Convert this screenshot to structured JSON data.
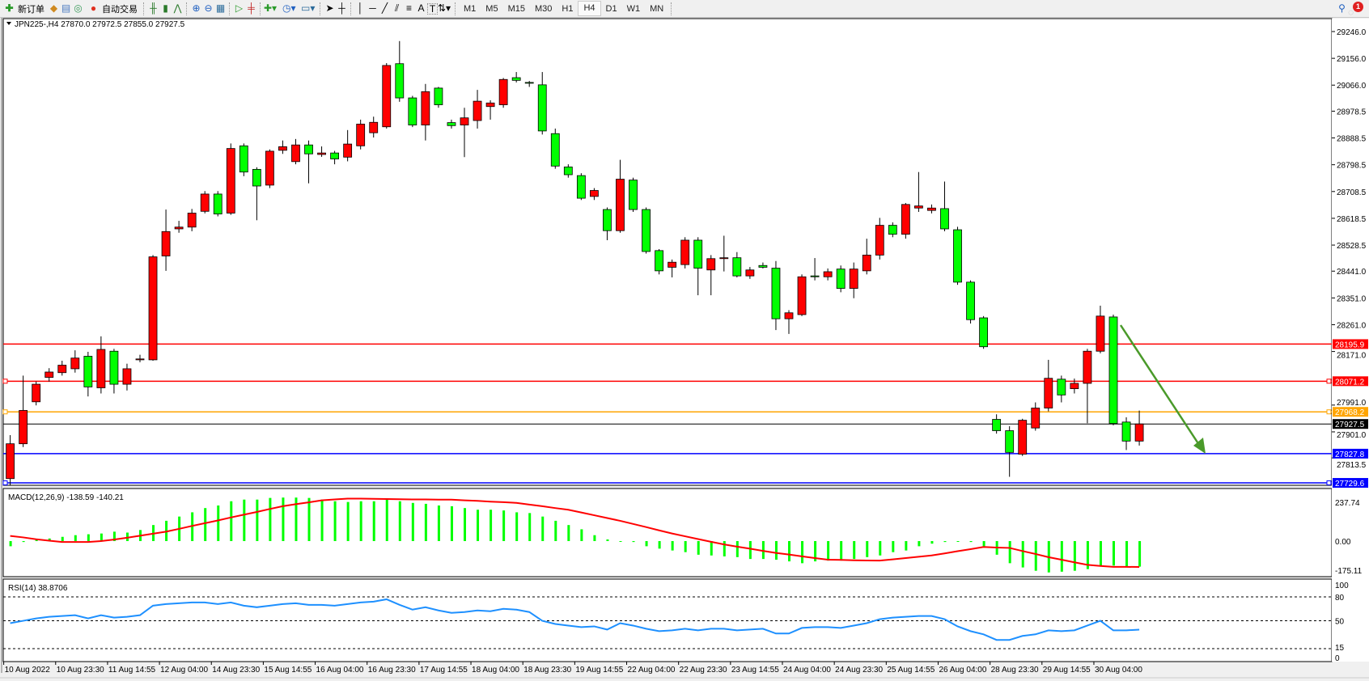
{
  "toolbar": {
    "new_order_label": "新订单",
    "auto_trading_label": "自动交易",
    "icons": [
      "new-order-icon",
      "metaeditor-icon",
      "history-icon",
      "signals-icon",
      "auto-trading-icon",
      "bar-chart-icon",
      "candlestick-icon",
      "line-chart-icon",
      "zoom-in-icon",
      "zoom-out-icon",
      "tile-windows-icon",
      "auto-scroll-icon",
      "chart-shift-icon",
      "indicators-icon",
      "periods-icon",
      "templates-icon",
      "cursor-icon",
      "crosshair-icon",
      "vertical-line-icon",
      "horizontal-line-icon",
      "trendline-icon",
      "equidistant-channel-icon",
      "fibonacci-icon",
      "text-icon",
      "text-label-icon",
      "arrows-icon"
    ],
    "timeframes": [
      "M1",
      "M5",
      "M15",
      "M30",
      "H1",
      "H4",
      "D1",
      "W1",
      "MN"
    ],
    "active_timeframe": "H4",
    "text_tool_label": "A",
    "label_tool_label": "T",
    "notification_count": "1"
  },
  "chart": {
    "header": "JPN225-,H4  27870.0 27972.5 27855.0 27927.5",
    "colors": {
      "bull": "#ff0000",
      "bear": "#00ff00",
      "macd_hist": "#00ff00",
      "signal": "#ff0000",
      "rsi": "#1e90ff",
      "arrow": "#4a9a2a"
    },
    "price_ticks": [
      "29246.0",
      "29156.0",
      "29066.0",
      "28978.5",
      "28888.5",
      "28798.5",
      "28708.5",
      "28618.5",
      "28528.5",
      "28441.0",
      "28351.0",
      "28261.0",
      "28171.0",
      "27991.0",
      "27901.0",
      "27813.5"
    ],
    "levels": [
      {
        "value": "28195.9",
        "color": "#ff0000",
        "text_color": "#ffffff"
      },
      {
        "value": "28071.2",
        "color": "#ff0000",
        "text_color": "#ffffff"
      },
      {
        "value": "27968.2",
        "color": "#ffa500",
        "text_color": "#ffffff"
      },
      {
        "value": "27927.5",
        "color": "#000000",
        "text_color": "#ffffff"
      },
      {
        "value": "27827.8",
        "color": "#0000ff",
        "text_color": "#ffffff"
      },
      {
        "value": "27729.6",
        "color": "#0000ff",
        "text_color": "#ffffff"
      }
    ],
    "time_labels": [
      "10 Aug 2022",
      "10 Aug 23:30",
      "11 Aug 14:55",
      "12 Aug 04:00",
      "14 Aug 23:30",
      "15 Aug 14:55",
      "16 Aug 04:00",
      "16 Aug 23:30",
      "17 Aug 14:55",
      "18 Aug 04:00",
      "18 Aug 23:30",
      "19 Aug 14:55",
      "22 Aug 04:00",
      "22 Aug 23:30",
      "23 Aug 14:55",
      "24 Aug 04:00",
      "24 Aug 23:30",
      "25 Aug 14:55",
      "26 Aug 04:00",
      "28 Aug 23:30",
      "29 Aug 14:55",
      "30 Aug 04:00"
    ],
    "macd": {
      "label": "MACD(12,26,9) -138.59 -140.21",
      "ticks": [
        "237.74",
        "0.00",
        "-175.11"
      ]
    },
    "rsi": {
      "label": "RSI(14) 38.8706",
      "ticks": [
        "100",
        "80",
        "50",
        "15",
        "0"
      ]
    }
  },
  "chart_data": {
    "type": "candlestick",
    "symbol": "JPN225-",
    "timeframe": "H4",
    "ylim": [
      27723.5,
      29246.0
    ],
    "ohlc": [
      [
        27744,
        27890,
        27720,
        27861
      ],
      [
        27861,
        28090,
        27850,
        27973
      ],
      [
        28002,
        28070,
        27990,
        28061
      ],
      [
        28084,
        28115,
        28070,
        28102
      ],
      [
        28100,
        28140,
        28090,
        28125
      ],
      [
        28113,
        28175,
        28100,
        28149
      ],
      [
        28155,
        28170,
        28020,
        28052
      ],
      [
        28049,
        28222,
        28030,
        28178
      ],
      [
        28172,
        28180,
        28030,
        28061
      ],
      [
        28061,
        28130,
        28040,
        28113
      ],
      [
        28143,
        28160,
        28135,
        28146
      ],
      [
        28143,
        28495,
        28140,
        28489
      ],
      [
        28492,
        28648,
        28442,
        28574
      ],
      [
        28583,
        28610,
        28570,
        28589
      ],
      [
        28589,
        28650,
        28575,
        28636
      ],
      [
        28642,
        28710,
        28635,
        28700
      ],
      [
        28700,
        28710,
        28625,
        28633
      ],
      [
        28636,
        28870,
        28630,
        28853
      ],
      [
        28862,
        28870,
        28760,
        28774
      ],
      [
        28783,
        28790,
        28612,
        28727
      ],
      [
        28730,
        28850,
        28720,
        28844
      ],
      [
        28847,
        28880,
        28835,
        28859
      ],
      [
        28809,
        28885,
        28800,
        28865
      ],
      [
        28865,
        28880,
        28736,
        28835
      ],
      [
        28833,
        28860,
        28825,
        28838
      ],
      [
        28838,
        28845,
        28800,
        28818
      ],
      [
        28824,
        28915,
        28810,
        28868
      ],
      [
        28862,
        28950,
        28850,
        28935
      ],
      [
        28906,
        28960,
        28890,
        28941
      ],
      [
        28926,
        29140,
        28920,
        29132
      ],
      [
        29138,
        29214,
        29010,
        29023
      ],
      [
        29023,
        29030,
        28925,
        28932
      ],
      [
        28932,
        29070,
        28880,
        29044
      ],
      [
        29056,
        29060,
        28990,
        29000
      ],
      [
        28940,
        28950,
        28920,
        28930
      ],
      [
        28932,
        28990,
        28824,
        28956
      ],
      [
        28947,
        29050,
        28920,
        29012
      ],
      [
        28994,
        29015,
        28950,
        29006
      ],
      [
        29000,
        29090,
        28990,
        29085
      ],
      [
        29091,
        29110,
        29075,
        29082
      ],
      [
        29075,
        29080,
        29060,
        29073
      ],
      [
        29067,
        29110,
        28900,
        28912
      ],
      [
        28903,
        28920,
        28785,
        28794
      ],
      [
        28791,
        28800,
        28755,
        28765
      ],
      [
        28762,
        28770,
        28680,
        28686
      ],
      [
        28692,
        28720,
        28680,
        28712
      ],
      [
        28648,
        28655,
        28545,
        28577
      ],
      [
        28577,
        28815,
        28570,
        28750
      ],
      [
        28747,
        28755,
        28640,
        28648
      ],
      [
        28648,
        28655,
        28500,
        28507
      ],
      [
        28510,
        28515,
        28430,
        28442
      ],
      [
        28454,
        28480,
        28420,
        28471
      ],
      [
        28463,
        28555,
        28450,
        28545
      ],
      [
        28545,
        28555,
        28360,
        28451
      ],
      [
        28445,
        28495,
        28360,
        28483
      ],
      [
        28483,
        28560,
        28440,
        28486
      ],
      [
        28486,
        28505,
        28420,
        28425
      ],
      [
        28425,
        28455,
        28415,
        28445
      ],
      [
        28460,
        28470,
        28450,
        28454
      ],
      [
        28451,
        28475,
        28243,
        28281
      ],
      [
        28281,
        28310,
        28230,
        28301
      ],
      [
        28295,
        28430,
        28290,
        28422
      ],
      [
        28425,
        28485,
        28410,
        28422
      ],
      [
        28422,
        28450,
        28410,
        28439
      ],
      [
        28448,
        28460,
        28370,
        28383
      ],
      [
        28383,
        28470,
        28350,
        28448
      ],
      [
        28442,
        28550,
        28430,
        28495
      ],
      [
        28495,
        28620,
        28480,
        28595
      ],
      [
        28595,
        28605,
        28555,
        28565
      ],
      [
        28565,
        28670,
        28550,
        28665
      ],
      [
        28653,
        28774,
        28640,
        28660
      ],
      [
        28645,
        28665,
        28635,
        28653
      ],
      [
        28651,
        28742,
        28575,
        28583
      ],
      [
        28580,
        28590,
        28395,
        28404
      ],
      [
        28404,
        28410,
        28265,
        28278
      ],
      [
        28284,
        28290,
        28180,
        28187
      ],
      [
        27943,
        27960,
        27895,
        27905
      ],
      [
        27905,
        27920,
        27750,
        27832
      ],
      [
        27826,
        27945,
        27820,
        27940
      ],
      [
        27914,
        28000,
        27905,
        27981
      ],
      [
        27981,
        28143,
        27970,
        28081
      ],
      [
        28078,
        28090,
        28000,
        28025
      ],
      [
        28046,
        28080,
        28030,
        28064
      ],
      [
        28064,
        28180,
        27930,
        28172
      ],
      [
        28172,
        28325,
        28165,
        28290
      ],
      [
        28287,
        28295,
        27923,
        27929
      ],
      [
        27934,
        27950,
        27840,
        27870
      ],
      [
        27870,
        27972.5,
        27855,
        27927.5
      ]
    ],
    "macd_hist": [
      -28,
      -5,
      9,
      14,
      23,
      32,
      37,
      41,
      51,
      46,
      60,
      87,
      110,
      133,
      156,
      179,
      193,
      216,
      225,
      225,
      234,
      236,
      236,
      234,
      225,
      216,
      212,
      216,
      216,
      225,
      216,
      207,
      202,
      193,
      189,
      179,
      170,
      170,
      166,
      156,
      152,
      133,
      110,
      87,
      64,
      32,
      9,
      0,
      -5,
      -28,
      -41,
      -51,
      -60,
      -74,
      -78,
      -83,
      -87,
      -97,
      -97,
      -101,
      -110,
      -120,
      -110,
      -106,
      -106,
      -97,
      -87,
      -78,
      -60,
      -51,
      -28,
      -14,
      -5,
      0,
      -5,
      -28,
      -74,
      -120,
      -143,
      -161,
      -170,
      -166,
      -161,
      -152,
      -133,
      -133,
      -143,
      -138.59
    ],
    "macd_signal": [
      28,
      20,
      10,
      2,
      -5,
      -5,
      -5,
      0,
      8,
      18,
      29,
      40,
      51,
      66,
      82,
      97,
      112,
      128,
      143,
      158,
      174,
      189,
      200,
      210,
      221,
      226,
      230,
      230,
      229,
      228,
      227,
      226,
      226,
      225,
      225,
      221,
      218,
      214,
      211,
      207,
      198,
      189,
      179,
      170,
      155,
      140,
      125,
      110,
      93,
      76,
      58,
      41,
      26,
      11,
      -4,
      -18,
      -30,
      -41,
      -53,
      -64,
      -73,
      -83,
      -92,
      -101,
      -102,
      -104,
      -105,
      -106,
      -99,
      -92,
      -85,
      -78,
      -67,
      -55,
      -44,
      -32,
      -35,
      -37,
      -54,
      -70,
      -87,
      -101,
      -115,
      -129,
      -135,
      -140,
      -140,
      -140.21
    ],
    "macd_ylim": [
      -175.11,
      237.74
    ],
    "rsi": [
      47,
      50,
      53,
      55,
      56,
      57,
      53,
      57,
      54,
      55,
      57,
      69,
      71,
      72,
      73,
      73,
      71,
      73,
      69,
      67,
      69,
      71,
      72,
      70,
      70,
      69,
      71,
      73,
      74,
      77,
      70,
      64,
      67,
      63,
      60,
      61,
      63,
      62,
      65,
      64,
      61,
      50,
      46,
      44,
      42,
      43,
      39,
      47,
      44,
      40,
      37,
      38,
      40,
      38,
      40,
      40,
      38,
      39,
      40,
      34,
      34,
      41,
      42,
      42,
      41,
      44,
      47,
      52,
      54,
      55,
      56,
      56,
      52,
      43,
      37,
      33,
      26,
      26,
      31,
      33,
      38,
      37,
      38,
      44,
      50,
      38,
      38,
      38.87
    ],
    "rsi_levels": [
      80,
      50,
      15
    ],
    "rsi_ylim": [
      0,
      100
    ]
  }
}
